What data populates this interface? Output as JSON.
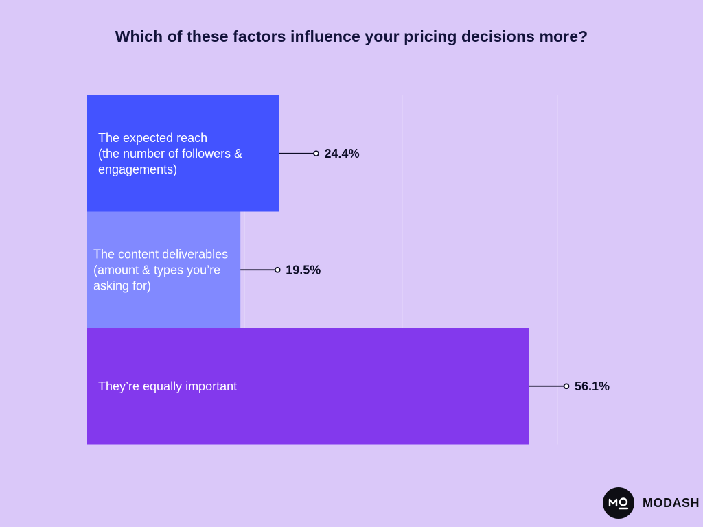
{
  "chart_data": {
    "type": "bar",
    "orientation": "horizontal",
    "title": "Which of these factors influence your pricing decisions more?",
    "categories": [
      [
        "The expected reach",
        "(the number of followers &",
        "engagements)"
      ],
      [
        "The content deliverables",
        "(amount & types you’re",
        "asking for)"
      ],
      [
        "They’re equally important"
      ]
    ],
    "values": [
      24.4,
      19.5,
      56.1
    ],
    "value_labels": [
      "24.4%",
      "19.5%",
      "56.1%"
    ],
    "colors": [
      "#4353ff",
      "#8189ff",
      "#8339ed"
    ],
    "xlim": [
      0,
      60
    ],
    "grid": true,
    "legend": "none"
  },
  "brand": {
    "name": "MODASH",
    "logo_icon": "mo-monogram-icon"
  }
}
